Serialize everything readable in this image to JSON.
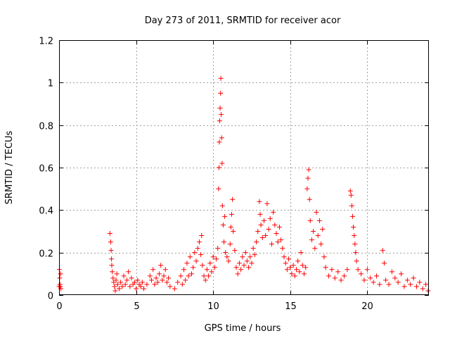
{
  "chart_data": {
    "type": "scatter",
    "title": "Day 273 of 2011, SRMTID for receiver acor",
    "xlabel": "GPS time / hours",
    "ylabel": "SRMTID / TECUs",
    "xlim": [
      0,
      24
    ],
    "ylim": [
      0,
      1.2
    ],
    "x_ticks": [
      0,
      5,
      10,
      15,
      20
    ],
    "x_tick_labels": [
      "0",
      "5",
      "10",
      "15",
      "20"
    ],
    "y_ticks": [
      0,
      0.2,
      0.4,
      0.6,
      0.8,
      1,
      1.2
    ],
    "y_tick_labels": [
      "0",
      "0.2",
      "0.4",
      "0.6",
      "0.8",
      "1",
      "1.2"
    ],
    "grid": true,
    "marker": "+",
    "marker_color": "#ff0000",
    "series": [
      {
        "name": "SRMTID",
        "points": [
          [
            0.0,
            0.04
          ],
          [
            0.02,
            0.12
          ],
          [
            0.04,
            0.08
          ],
          [
            0.06,
            0.05
          ],
          [
            0.08,
            0.04
          ],
          [
            0.1,
            0.1
          ],
          [
            0.12,
            0.03
          ],
          [
            3.3,
            0.29
          ],
          [
            3.35,
            0.25
          ],
          [
            3.38,
            0.21
          ],
          [
            3.4,
            0.17
          ],
          [
            3.42,
            0.14
          ],
          [
            3.45,
            0.11
          ],
          [
            3.5,
            0.08
          ],
          [
            3.55,
            0.06
          ],
          [
            3.6,
            0.04
          ],
          [
            3.65,
            0.02
          ],
          [
            3.7,
            0.07
          ],
          [
            3.75,
            0.1
          ],
          [
            3.8,
            0.05
          ],
          [
            3.9,
            0.03
          ],
          [
            4.0,
            0.06
          ],
          [
            4.1,
            0.04
          ],
          [
            4.2,
            0.09
          ],
          [
            4.3,
            0.05
          ],
          [
            4.4,
            0.07
          ],
          [
            4.5,
            0.11
          ],
          [
            4.6,
            0.04
          ],
          [
            4.7,
            0.08
          ],
          [
            4.8,
            0.05
          ],
          [
            4.9,
            0.06
          ],
          [
            5.0,
            0.03
          ],
          [
            5.1,
            0.07
          ],
          [
            5.2,
            0.05
          ],
          [
            5.3,
            0.04
          ],
          [
            5.4,
            0.06
          ],
          [
            5.5,
            0.03
          ],
          [
            5.7,
            0.05
          ],
          [
            5.9,
            0.09
          ],
          [
            6.0,
            0.07
          ],
          [
            6.1,
            0.12
          ],
          [
            6.2,
            0.05
          ],
          [
            6.3,
            0.08
          ],
          [
            6.4,
            0.06
          ],
          [
            6.5,
            0.1
          ],
          [
            6.6,
            0.14
          ],
          [
            6.7,
            0.07
          ],
          [
            6.8,
            0.09
          ],
          [
            6.9,
            0.12
          ],
          [
            7.0,
            0.06
          ],
          [
            7.1,
            0.08
          ],
          [
            7.2,
            0.04
          ],
          [
            7.5,
            0.03
          ],
          [
            7.7,
            0.06
          ],
          [
            7.9,
            0.09
          ],
          [
            8.0,
            0.05
          ],
          [
            8.1,
            0.12
          ],
          [
            8.2,
            0.07
          ],
          [
            8.3,
            0.15
          ],
          [
            8.4,
            0.09
          ],
          [
            8.5,
            0.18
          ],
          [
            8.6,
            0.1
          ],
          [
            8.7,
            0.13
          ],
          [
            8.8,
            0.2
          ],
          [
            8.9,
            0.16
          ],
          [
            9.0,
            0.22
          ],
          [
            9.1,
            0.25
          ],
          [
            9.2,
            0.19
          ],
          [
            9.25,
            0.28
          ],
          [
            9.3,
            0.14
          ],
          [
            9.4,
            0.09
          ],
          [
            9.5,
            0.07
          ],
          [
            9.6,
            0.12
          ],
          [
            9.7,
            0.09
          ],
          [
            9.8,
            0.15
          ],
          [
            9.9,
            0.11
          ],
          [
            10.0,
            0.18
          ],
          [
            10.1,
            0.13
          ],
          [
            10.2,
            0.17
          ],
          [
            10.3,
            0.22
          ],
          [
            10.35,
            0.5
          ],
          [
            10.38,
            0.6
          ],
          [
            10.4,
            0.72
          ],
          [
            10.42,
            0.82
          ],
          [
            10.45,
            0.88
          ],
          [
            10.48,
            0.95
          ],
          [
            10.5,
            1.02
          ],
          [
            10.52,
            0.85
          ],
          [
            10.55,
            0.74
          ],
          [
            10.58,
            0.62
          ],
          [
            10.6,
            0.42
          ],
          [
            10.65,
            0.33
          ],
          [
            10.7,
            0.25
          ],
          [
            10.75,
            0.37
          ],
          [
            10.8,
            0.2
          ],
          [
            10.9,
            0.18
          ],
          [
            11.0,
            0.16
          ],
          [
            11.1,
            0.24
          ],
          [
            11.15,
            0.32
          ],
          [
            11.2,
            0.38
          ],
          [
            11.25,
            0.45
          ],
          [
            11.3,
            0.3
          ],
          [
            11.4,
            0.21
          ],
          [
            11.5,
            0.13
          ],
          [
            11.6,
            0.1
          ],
          [
            11.7,
            0.15
          ],
          [
            11.8,
            0.12
          ],
          [
            11.9,
            0.18
          ],
          [
            12.0,
            0.14
          ],
          [
            12.1,
            0.2
          ],
          [
            12.2,
            0.16
          ],
          [
            12.3,
            0.13
          ],
          [
            12.4,
            0.18
          ],
          [
            12.5,
            0.15
          ],
          [
            12.6,
            0.22
          ],
          [
            12.7,
            0.19
          ],
          [
            12.8,
            0.25
          ],
          [
            12.9,
            0.3
          ],
          [
            13.0,
            0.44
          ],
          [
            13.05,
            0.38
          ],
          [
            13.1,
            0.33
          ],
          [
            13.2,
            0.27
          ],
          [
            13.3,
            0.35
          ],
          [
            13.4,
            0.28
          ],
          [
            13.5,
            0.43
          ],
          [
            13.6,
            0.31
          ],
          [
            13.7,
            0.36
          ],
          [
            13.8,
            0.24
          ],
          [
            13.9,
            0.39
          ],
          [
            14.0,
            0.33
          ],
          [
            14.1,
            0.29
          ],
          [
            14.2,
            0.25
          ],
          [
            14.3,
            0.32
          ],
          [
            14.4,
            0.26
          ],
          [
            14.5,
            0.22
          ],
          [
            14.6,
            0.18
          ],
          [
            14.7,
            0.15
          ],
          [
            14.8,
            0.12
          ],
          [
            14.9,
            0.17
          ],
          [
            15.0,
            0.13
          ],
          [
            15.1,
            0.1
          ],
          [
            15.2,
            0.14
          ],
          [
            15.3,
            0.09
          ],
          [
            15.4,
            0.12
          ],
          [
            15.5,
            0.16
          ],
          [
            15.6,
            0.11
          ],
          [
            15.7,
            0.2
          ],
          [
            15.8,
            0.14
          ],
          [
            15.9,
            0.1
          ],
          [
            16.0,
            0.13
          ],
          [
            16.1,
            0.5
          ],
          [
            16.15,
            0.55
          ],
          [
            16.2,
            0.59
          ],
          [
            16.25,
            0.45
          ],
          [
            16.3,
            0.35
          ],
          [
            16.4,
            0.26
          ],
          [
            16.5,
            0.3
          ],
          [
            16.6,
            0.22
          ],
          [
            16.7,
            0.39
          ],
          [
            16.8,
            0.28
          ],
          [
            16.9,
            0.35
          ],
          [
            17.0,
            0.24
          ],
          [
            17.1,
            0.31
          ],
          [
            17.2,
            0.18
          ],
          [
            17.3,
            0.13
          ],
          [
            17.5,
            0.09
          ],
          [
            17.7,
            0.12
          ],
          [
            17.9,
            0.08
          ],
          [
            18.1,
            0.11
          ],
          [
            18.3,
            0.07
          ],
          [
            18.5,
            0.09
          ],
          [
            18.7,
            0.12
          ],
          [
            18.9,
            0.49
          ],
          [
            18.95,
            0.47
          ],
          [
            19.0,
            0.42
          ],
          [
            19.05,
            0.37
          ],
          [
            19.1,
            0.32
          ],
          [
            19.15,
            0.28
          ],
          [
            19.2,
            0.24
          ],
          [
            19.25,
            0.2
          ],
          [
            19.3,
            0.16
          ],
          [
            19.4,
            0.12
          ],
          [
            19.6,
            0.1
          ],
          [
            19.8,
            0.07
          ],
          [
            20.0,
            0.12
          ],
          [
            20.2,
            0.08
          ],
          [
            20.4,
            0.06
          ],
          [
            20.6,
            0.09
          ],
          [
            20.8,
            0.05
          ],
          [
            21.0,
            0.21
          ],
          [
            21.1,
            0.15
          ],
          [
            21.2,
            0.07
          ],
          [
            21.4,
            0.05
          ],
          [
            21.6,
            0.11
          ],
          [
            21.8,
            0.08
          ],
          [
            22.0,
            0.06
          ],
          [
            22.2,
            0.1
          ],
          [
            22.4,
            0.04
          ],
          [
            22.6,
            0.07
          ],
          [
            22.8,
            0.05
          ],
          [
            23.0,
            0.08
          ],
          [
            23.2,
            0.04
          ],
          [
            23.4,
            0.06
          ],
          [
            23.6,
            0.03
          ],
          [
            23.8,
            0.05
          ],
          [
            23.95,
            0.02
          ]
        ]
      }
    ]
  }
}
